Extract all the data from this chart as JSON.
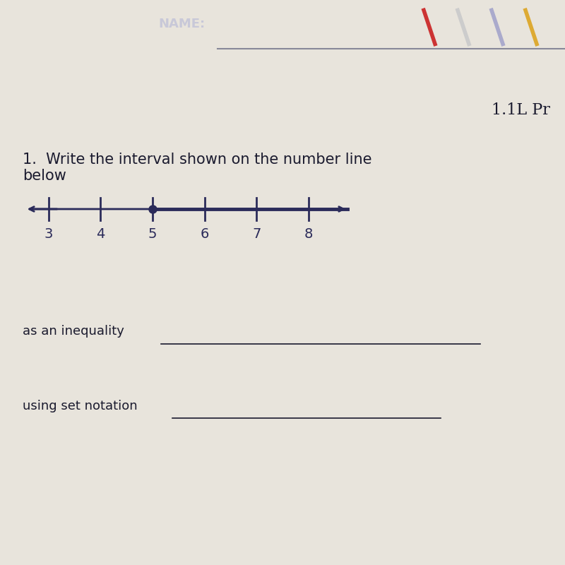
{
  "title_header": "1.1L Pr",
  "name_label": "NAME:",
  "question_text": "1.  Write the interval shown on the number line\nbelow",
  "inequality_label": "as an inequality",
  "set_notation_label": "using set notation",
  "number_line": {
    "ticks": [
      3,
      4,
      5,
      6,
      7,
      8
    ],
    "filled_dot": 5,
    "line_color": "#2b2b5a",
    "dot_color": "#2b2b5a"
  },
  "bg_color": "#e8e4dc",
  "header_bg": "#1a1a2e",
  "text_color": "#1a1a2e",
  "font_size_question": 15,
  "font_size_label": 13
}
